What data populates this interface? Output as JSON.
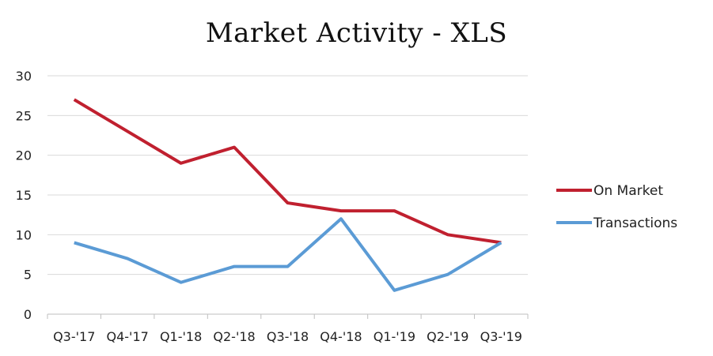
{
  "chart_data": {
    "type": "line",
    "title": "Market Activity - XLS",
    "xlabel": "",
    "ylabel": "",
    "categories": [
      "Q3-'17",
      "Q4-'17",
      "Q1-'18",
      "Q2-'18",
      "Q3-'18",
      "Q4-'18",
      "Q1-'19",
      "Q2-'19",
      "Q3-'19"
    ],
    "ylim": [
      0,
      30
    ],
    "yticks": [
      0,
      5,
      10,
      15,
      20,
      25,
      30
    ],
    "grid": true,
    "legend_position": "right",
    "series": [
      {
        "name": "On Market",
        "color": "#c0202f",
        "values": [
          27,
          23,
          19,
          21,
          14,
          13,
          13,
          10,
          9
        ]
      },
      {
        "name": "Transactions",
        "color": "#5b9bd5",
        "values": [
          9,
          7,
          4,
          6,
          6,
          12,
          3,
          5,
          9
        ]
      }
    ]
  }
}
